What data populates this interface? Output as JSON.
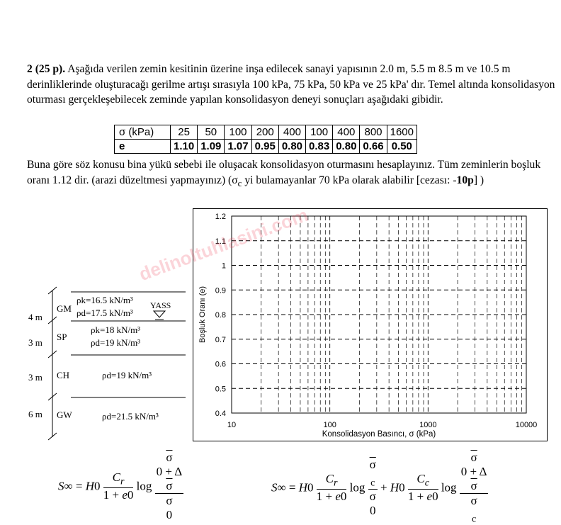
{
  "question": {
    "number": "2",
    "points": "(25 p).",
    "text1": "Aşağıda verilen zemin kesitinin üzerine inşa edilecek sanayi yapısının 2.0 m, 5.5 m 8.5 m ve 10.5 m derinliklerinde oluşturacağı gerilme artışı sırasıyla 100 kPa, 75 kPa, 50 kPa ve 25 kPa' dır. Temel altında konsolidasyon oturması gerçekleşebilecek zeminde yapılan konsolidasyon deneyi sonuçları aşağıdaki gibidir.",
    "text2a": "Buna göre söz konusu bina yükü sebebi ile oluşacak konsolidasyon oturmasını hesaplayınız. Tüm zeminlerin boşluk oranı 1.12 dir. (arazi düzeltmesi yapmayınız) (σ",
    "text2b": "c",
    "text2c": " yi bulamayanlar 70 kPa olarak alabilir [cezası: -",
    "text2d": "10p",
    "text2e": "] )"
  },
  "table": {
    "sigma_header": "σ (kPa)",
    "e_header": "e",
    "sigma": [
      "25",
      "50",
      "100",
      "200",
      "400",
      "100",
      "400",
      "800",
      "1600"
    ],
    "e": [
      "1.10",
      "1.09",
      "1.07",
      "0.95",
      "0.80",
      "0.83",
      "0.80",
      "0.66",
      "0.50"
    ]
  },
  "soil": {
    "layers": [
      {
        "thick": "4 m",
        "name": "GM",
        "p1": "ρk=16.5 kN/m³",
        "p2": "ρd=17.5 kN/m³"
      },
      {
        "thick": "3 m",
        "name": "SP",
        "p1": "ρk=18 kN/m³",
        "p2": "ρd=19 kN/m³"
      },
      {
        "thick": "3 m",
        "name": "CH",
        "p1": "ρd=19 kN/m³"
      },
      {
        "thick": "6 m",
        "name": "GW",
        "p1": "ρd=21.5 kN/m³"
      }
    ],
    "gwt": "YASS"
  },
  "chart_data": {
    "type": "line",
    "title": "",
    "xlabel": "Konsolidasyon Basıncı, σ (kPa)",
    "ylabel": "Boşluk Oranı (e)",
    "xscale": "log",
    "xlim": [
      10,
      10000
    ],
    "ylim": [
      0.4,
      1.2
    ],
    "xticks": [
      "10",
      "100",
      "1000",
      "10000"
    ],
    "yticks": [
      "0.4",
      "0.5",
      "0.6",
      "0.7",
      "0.8",
      "0.9",
      "1",
      "1.1",
      "1.2"
    ],
    "grid": true,
    "series": []
  },
  "watermark": "delinoltuhlasini.com",
  "formulas": {
    "f1": "S∞ = H0 · Cr/(1+e0) · log((σ̄0+Δσ̄)/σ̄0)",
    "f2": "S∞ = H0 · Cr/(1+e0) · log(σ̄c/σ̄0) + H0 · Cc/(1+e0) · log((σ̄0+Δσ̄)/σ̄c)"
  }
}
